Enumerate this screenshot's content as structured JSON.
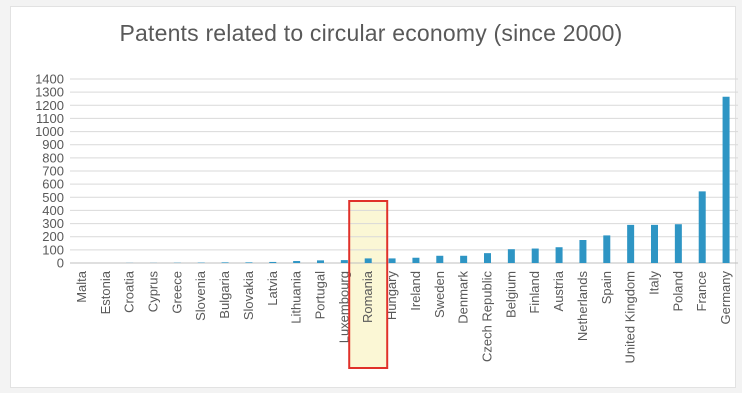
{
  "chart_data": {
    "type": "bar",
    "title": "Patents related to circular economy (since 2000)",
    "xlabel": "",
    "ylabel": "",
    "ylim": [
      0,
      1400
    ],
    "yticks": [
      0,
      100,
      200,
      300,
      400,
      500,
      600,
      700,
      800,
      900,
      1000,
      1100,
      1200,
      1300,
      1400
    ],
    "grid": true,
    "legend": "none",
    "bar_color": "#2e95c4",
    "highlight": {
      "category": "Romania",
      "border_color": "#e0312a",
      "fill_color": "#fbf7d5"
    },
    "categories": [
      "Malta",
      "Estonia",
      "Croatia",
      "Cyprus",
      "Greece",
      "Slovenia",
      "Bulgaria",
      "Slovakia",
      "Latvia",
      "Lithuania",
      "Portugal",
      "Luxembourg",
      "Romania",
      "Hungary",
      "Ireland",
      "Sweden",
      "Denmark",
      "Czech Republic",
      "Belgium",
      "Finland",
      "Austria",
      "Netherlands",
      "Spain",
      "United Kingdom",
      "Italy",
      "Poland",
      "France",
      "Germany"
    ],
    "values": [
      0,
      0,
      1,
      1,
      2,
      3,
      5,
      5,
      8,
      15,
      20,
      22,
      35,
      35,
      40,
      55,
      55,
      75,
      105,
      110,
      120,
      175,
      210,
      290,
      290,
      295,
      545,
      1265
    ]
  }
}
